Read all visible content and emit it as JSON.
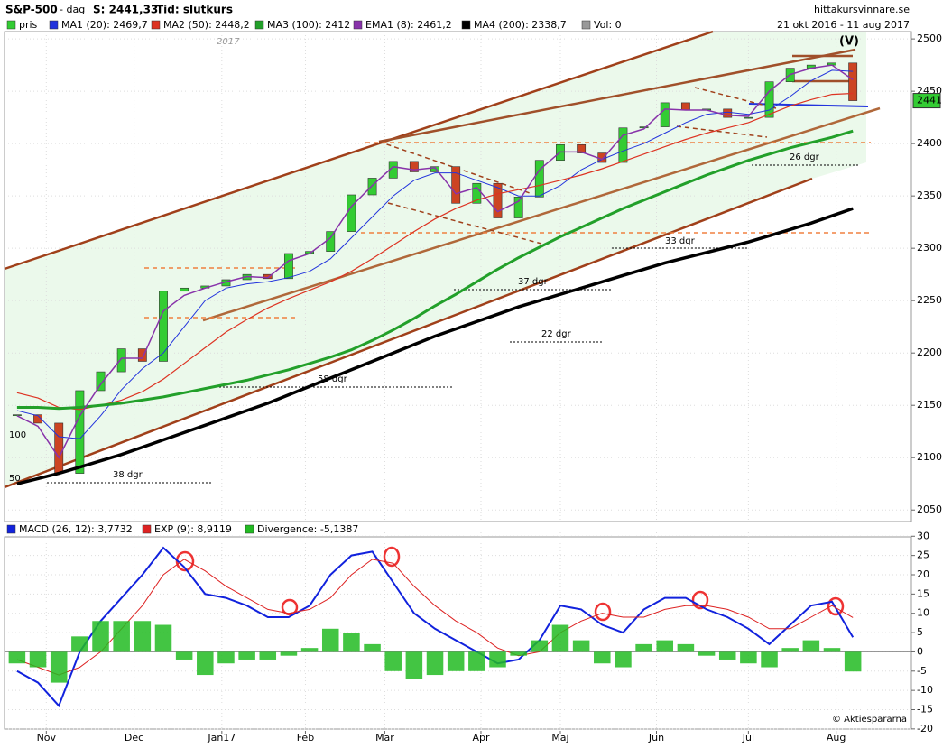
{
  "header": {
    "title": "S&P-500",
    "period": "- dag",
    "close_label": "S: 2441,33",
    "time_label": "Tid: slutkurs",
    "date_range": "21 okt 2016 - 11 aug 2017",
    "source": "hittakursvinnare.se",
    "copyright": "© Aktiespararna"
  },
  "chart_data": [
    {
      "type": "candlestick",
      "x": [
        0,
        5,
        10,
        15,
        20,
        25,
        30,
        35,
        40,
        45,
        50,
        55,
        60,
        65,
        70,
        75,
        80,
        85,
        90,
        95,
        100,
        105,
        110,
        115,
        120,
        125,
        130,
        135,
        140,
        145,
        150,
        155,
        160,
        165,
        170,
        175,
        180,
        185,
        190,
        195,
        200
      ],
      "xlim": [
        -3,
        214
      ],
      "ylim": [
        2039,
        2507
      ],
      "yticks": [
        2050,
        2100,
        2150,
        2200,
        2250,
        2300,
        2350,
        2400,
        2450,
        2500
      ],
      "grid": true,
      "up_color": "#33cc33",
      "down_color": "#cc4422",
      "series": [
        {
          "name": "pris",
          "kind": "candle",
          "color": "#33cc33",
          "values": [
            2141,
            2133,
            2085,
            2164,
            2182,
            2204,
            2192,
            2259,
            2262,
            2264,
            2270,
            2275,
            2271,
            2295,
            2297,
            2316,
            2351,
            2367,
            2383,
            2373,
            2378,
            2343,
            2362,
            2329,
            2349,
            2384,
            2399,
            2391,
            2382,
            2415,
            2416,
            2439,
            2432,
            2433,
            2425,
            2425,
            2459,
            2472,
            2475,
            2477,
            2441
          ]
        },
        {
          "name": "MA1 (20): 2469,7",
          "kind": "line",
          "color": "#2233dd",
          "width": 1,
          "values": [
            2145,
            2140,
            2120,
            2118,
            2140,
            2165,
            2185,
            2200,
            2225,
            2250,
            2262,
            2266,
            2268,
            2272,
            2278,
            2290,
            2310,
            2330,
            2350,
            2365,
            2372,
            2372,
            2365,
            2358,
            2350,
            2350,
            2360,
            2375,
            2385,
            2393,
            2400,
            2410,
            2420,
            2428,
            2430,
            2428,
            2432,
            2445,
            2460,
            2470,
            2469
          ]
        },
        {
          "name": "MA2 (50): 2448,2",
          "kind": "line",
          "color": "#dd3322",
          "width": 1.2,
          "values": [
            2162,
            2157,
            2148,
            2146,
            2150,
            2155,
            2163,
            2175,
            2190,
            2205,
            2220,
            2232,
            2243,
            2252,
            2260,
            2268,
            2278,
            2290,
            2303,
            2316,
            2328,
            2338,
            2346,
            2352,
            2356,
            2360,
            2365,
            2370,
            2376,
            2383,
            2390,
            2397,
            2404,
            2410,
            2415,
            2420,
            2428,
            2436,
            2442,
            2447,
            2448
          ]
        },
        {
          "name": "MA3 (100): 2412",
          "kind": "line",
          "color": "#22a02a",
          "width": 3,
          "values": [
            2148,
            2148,
            2147,
            2148,
            2150,
            2152,
            2155,
            2158,
            2162,
            2166,
            2170,
            2174,
            2179,
            2184,
            2190,
            2196,
            2203,
            2212,
            2222,
            2233,
            2245,
            2256,
            2268,
            2280,
            2291,
            2301,
            2311,
            2320,
            2329,
            2338,
            2346,
            2354,
            2362,
            2370,
            2377,
            2384,
            2390,
            2396,
            2401,
            2406,
            2412
          ]
        },
        {
          "name": "EMA1 (8): 2461,2",
          "kind": "line",
          "color": "#8833aa",
          "width": 1.5,
          "values": [
            2140,
            2130,
            2100,
            2140,
            2170,
            2195,
            2195,
            2240,
            2255,
            2262,
            2268,
            2273,
            2272,
            2288,
            2295,
            2310,
            2340,
            2360,
            2378,
            2375,
            2377,
            2352,
            2358,
            2335,
            2345,
            2375,
            2392,
            2392,
            2385,
            2408,
            2414,
            2433,
            2432,
            2432,
            2427,
            2426,
            2450,
            2466,
            2472,
            2475,
            2461
          ]
        },
        {
          "name": "MA4 (200): 2338,7",
          "kind": "line",
          "color": "#000000",
          "width": 3.5,
          "values": [
            2075,
            2080,
            2085,
            2091,
            2097,
            2103,
            2110,
            2117,
            2124,
            2131,
            2138,
            2145,
            2152,
            2160,
            2168,
            2176,
            2184,
            2192,
            2200,
            2208,
            2216,
            2223,
            2230,
            2237,
            2244,
            2250,
            2256,
            2262,
            2268,
            2274,
            2280,
            2286,
            2291,
            2296,
            2301,
            2306,
            2312,
            2318,
            2324,
            2331,
            2338
          ]
        }
      ],
      "volume_label": "Vol: 0",
      "volume_color": "#999999",
      "volume_ticks": [
        100,
        50
      ],
      "last_value": 2441,
      "last_value_color": "#33cc33",
      "annotations": [
        "2017",
        "(V)",
        "38 dgr",
        "58 dgr",
        "37 dgr",
        "22 dgr",
        "33 dgr",
        "26 dgr"
      ]
    },
    {
      "type": "line",
      "x": [
        0,
        5,
        10,
        15,
        20,
        25,
        30,
        35,
        40,
        45,
        50,
        55,
        60,
        65,
        70,
        75,
        80,
        85,
        90,
        95,
        100,
        105,
        110,
        115,
        120,
        125,
        130,
        135,
        140,
        145,
        150,
        155,
        160,
        165,
        170,
        175,
        180,
        185,
        190,
        195,
        200
      ],
      "xlim": [
        -3,
        214
      ],
      "ylim": [
        -20.5,
        31
      ],
      "yticks": [
        30,
        25,
        20,
        15,
        10,
        5,
        0,
        -5,
        -10,
        -15,
        -20
      ],
      "xticks": [
        {
          "value": 7,
          "label": "Nov"
        },
        {
          "value": 28,
          "label": "Dec"
        },
        {
          "value": 49,
          "label": "Jan17"
        },
        {
          "value": 69,
          "label": "Feb"
        },
        {
          "value": 88,
          "label": "Mar"
        },
        {
          "value": 111,
          "label": "Apr"
        },
        {
          "value": 130,
          "label": "Maj"
        },
        {
          "value": 153,
          "label": "Jun"
        },
        {
          "value": 175,
          "label": "Jul"
        },
        {
          "value": 196,
          "label": "Aug"
        }
      ],
      "grid": true,
      "series": [
        {
          "name": "MACD (26, 12): 3,7732",
          "kind": "line",
          "color": "#1122dd",
          "width": 2,
          "values": [
            -5,
            -8,
            -14,
            0,
            8,
            14,
            20,
            27,
            22,
            15,
            14,
            12,
            9,
            9,
            12,
            20,
            25,
            26,
            18,
            10,
            6,
            3,
            0,
            -3,
            -2,
            3,
            12,
            11,
            7,
            5,
            11,
            14,
            14,
            11,
            9,
            6,
            2,
            7,
            12,
            13,
            3.8
          ]
        },
        {
          "name": "EXP (9): 8,9119",
          "kind": "line",
          "color": "#dd2222",
          "width": 1,
          "values": [
            -2,
            -4,
            -6,
            -4,
            0,
            6,
            12,
            20,
            24,
            21,
            17,
            14,
            11,
            10,
            11,
            14,
            20,
            24,
            23,
            17,
            12,
            8,
            5,
            1,
            -1,
            0,
            5,
            8,
            10,
            9,
            9,
            11,
            12,
            12,
            11,
            9,
            6,
            6,
            9,
            12,
            8.9
          ]
        },
        {
          "name": "Divergence: -5,1387",
          "kind": "bar",
          "color": "#22bb22",
          "values": [
            -3,
            -4,
            -8,
            4,
            8,
            8,
            8,
            7,
            -2,
            -6,
            -3,
            -2,
            -2,
            -1,
            1,
            6,
            5,
            2,
            -5,
            -7,
            -6,
            -5,
            -5,
            -4,
            -1,
            3,
            7,
            3,
            -3,
            -4,
            2,
            3,
            2,
            -1,
            -2,
            -3,
            -4,
            1,
            3,
            1,
            -5.1
          ]
        }
      ]
    }
  ]
}
